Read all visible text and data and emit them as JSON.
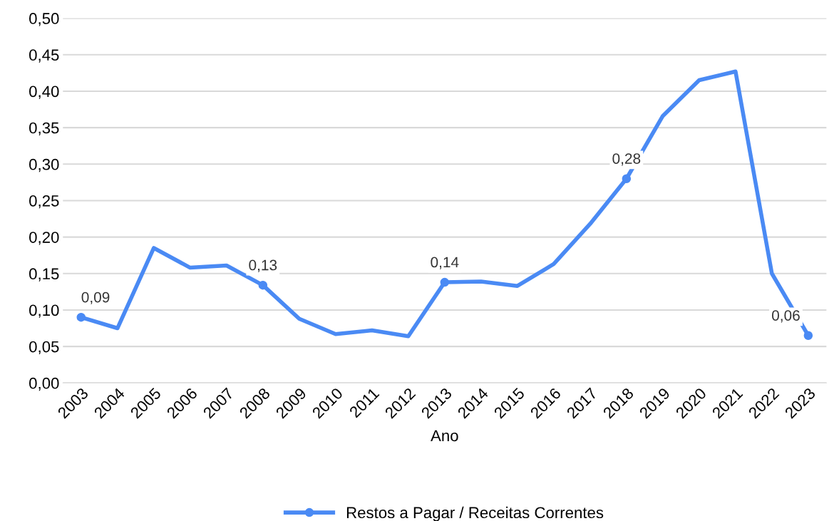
{
  "chart_data": {
    "type": "line",
    "xlabel": "Ano",
    "categories": [
      "2003",
      "2004",
      "2005",
      "2006",
      "2007",
      "2008",
      "2009",
      "2010",
      "2011",
      "2012",
      "2013",
      "2014",
      "2015",
      "2016",
      "2017",
      "2018",
      "2019",
      "2020",
      "2021",
      "2022",
      "2023"
    ],
    "series": [
      {
        "name": "Restos a Pagar / Receitas Correntes",
        "color": "#4a8af4",
        "values": [
          0.09,
          0.075,
          0.185,
          0.158,
          0.161,
          0.134,
          0.088,
          0.067,
          0.072,
          0.064,
          0.138,
          0.139,
          0.133,
          0.163,
          0.218,
          0.28,
          0.366,
          0.415,
          0.427,
          0.15,
          0.065
        ],
        "value_labels": [
          "0,09",
          null,
          null,
          null,
          null,
          "0,13",
          null,
          null,
          null,
          null,
          "0,14",
          null,
          null,
          null,
          null,
          "0,28",
          null,
          null,
          null,
          null,
          "0,06"
        ]
      }
    ],
    "ylim": [
      0,
      0.5
    ],
    "yticks": [
      {
        "value": 0,
        "label": "0,00"
      },
      {
        "value": 0.05,
        "label": "0,05"
      },
      {
        "value": 0.1,
        "label": "0,10"
      },
      {
        "value": 0.15,
        "label": "0,15"
      },
      {
        "value": 0.2,
        "label": "0,20"
      },
      {
        "value": 0.25,
        "label": "0,25"
      },
      {
        "value": 0.3,
        "label": "0,30"
      },
      {
        "value": 0.35,
        "label": "0,35"
      },
      {
        "value": 0.4,
        "label": "0,40"
      },
      {
        "value": 0.45,
        "label": "0,45"
      },
      {
        "value": 0.5,
        "label": "0,50"
      }
    ],
    "grid": "y",
    "legend": "bottom",
    "line_style": "solid"
  }
}
